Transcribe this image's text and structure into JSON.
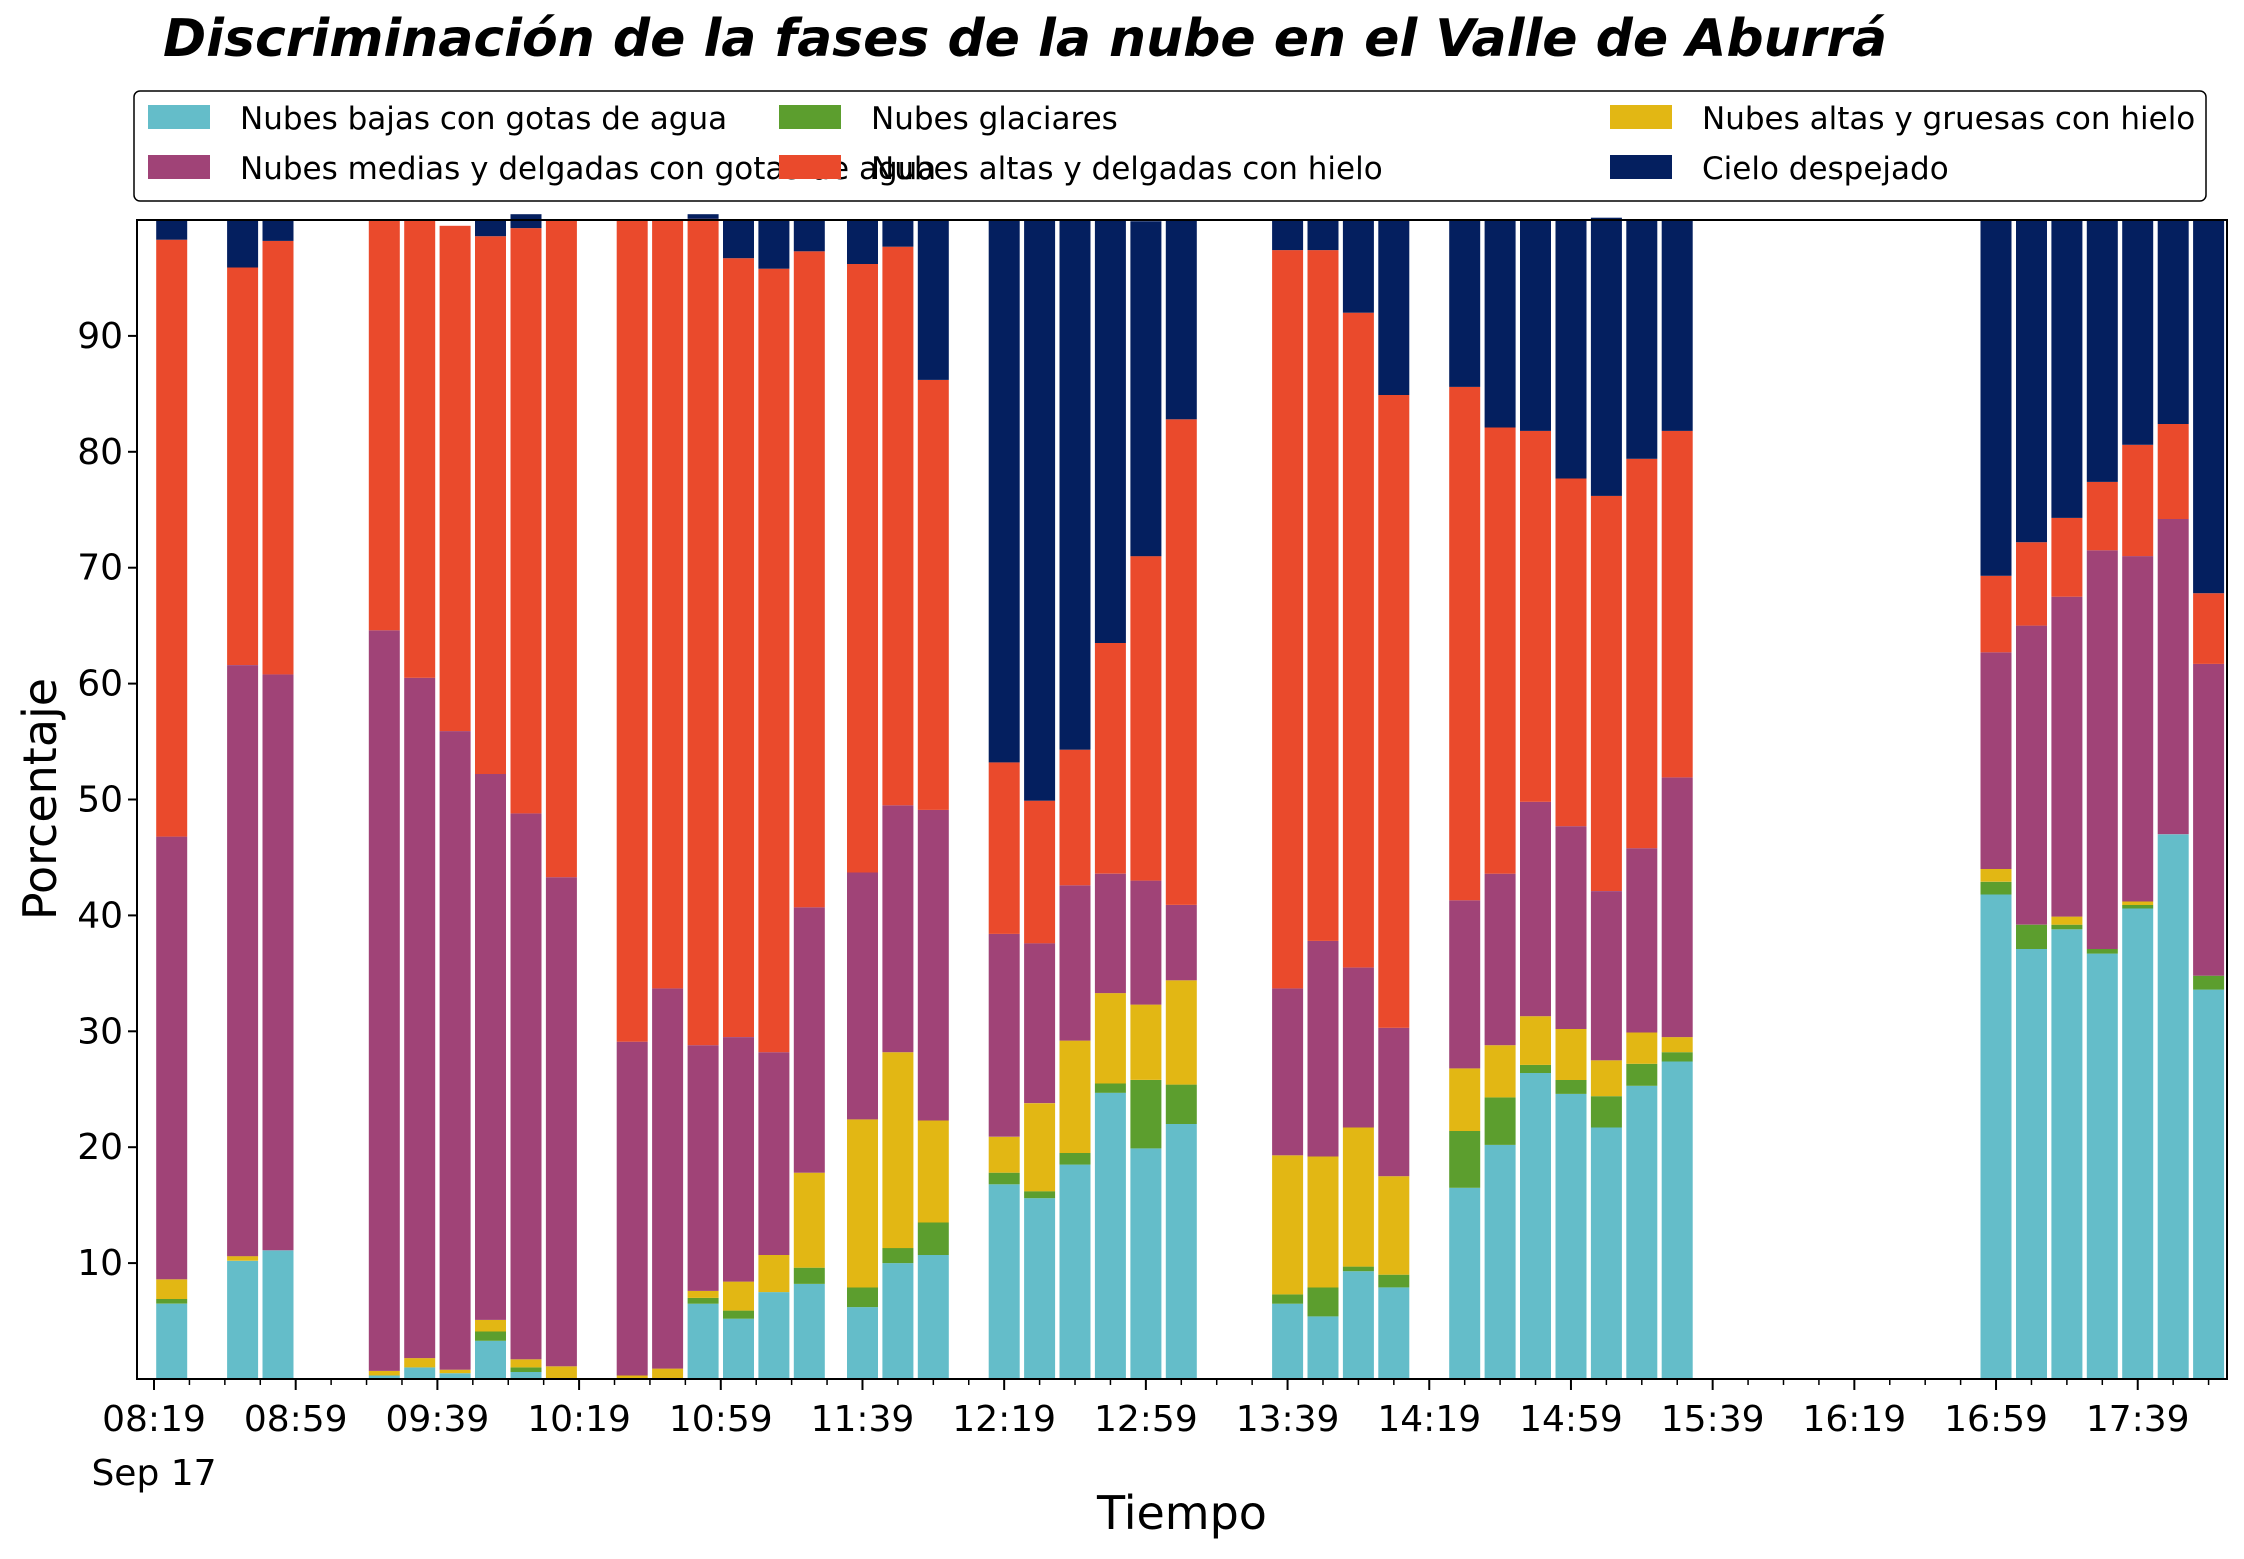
{
  "chart_data": {
    "type": "bar",
    "stacked": true,
    "title": "Discriminación de la fases de la nube en el Valle de Aburrá",
    "xlabel": "Tiempo",
    "ylabel": "Porcentaje",
    "ylim": [
      0,
      100
    ],
    "yticks": [
      10,
      20,
      30,
      40,
      50,
      60,
      70,
      80,
      90
    ],
    "xticks": [
      {
        "t": 0,
        "label": "08:19",
        "sublabel": "Sep 17"
      },
      {
        "t": 40,
        "label": "08:59"
      },
      {
        "t": 80,
        "label": "09:39"
      },
      {
        "t": 120,
        "label": "10:19"
      },
      {
        "t": 160,
        "label": "10:59"
      },
      {
        "t": 200,
        "label": "11:39"
      },
      {
        "t": 240,
        "label": "12:19"
      },
      {
        "t": 280,
        "label": "12:59"
      },
      {
        "t": 320,
        "label": "13:39"
      },
      {
        "t": 360,
        "label": "14:19"
      },
      {
        "t": 400,
        "label": "14:59"
      },
      {
        "t": 440,
        "label": "15:39"
      },
      {
        "t": 480,
        "label": "16:19"
      },
      {
        "t": 520,
        "label": "16:59"
      },
      {
        "t": 560,
        "label": "17:39"
      }
    ],
    "x_minutes_after_0819": [
      5,
      25,
      35,
      65,
      75,
      85,
      95,
      105,
      115,
      135,
      145,
      155,
      165,
      175,
      185,
      200,
      210,
      220,
      240,
      250,
      260,
      270,
      280,
      290,
      320,
      330,
      340,
      350,
      370,
      380,
      390,
      400,
      410,
      420,
      430,
      520,
      530,
      540,
      550,
      560,
      570,
      580
    ],
    "legend_position": "top",
    "series": [
      {
        "name": "Nubes bajas con gotas de agua",
        "color": "#64bdc9",
        "values": [
          6.5,
          10.2,
          11.1,
          0.3,
          1.0,
          0.5,
          3.3,
          0.6,
          0,
          0,
          0,
          6.5,
          5.2,
          7.5,
          8.2,
          6.2,
          10.0,
          10.7,
          16.8,
          15.6,
          18.5,
          24.7,
          19.9,
          22.0,
          6.5,
          5.4,
          9.3,
          7.9,
          16.5,
          20.2,
          26.4,
          24.6,
          21.7,
          25.3,
          27.4,
          41.8,
          37.1,
          38.8,
          36.7,
          40.6,
          47.0,
          33.6
        ]
      },
      {
        "name": "Nubes glaciares",
        "color": "#5c9e2e",
        "values": [
          0.4,
          0,
          0,
          0,
          0,
          0,
          0.8,
          0.4,
          0,
          0,
          0,
          0.5,
          0.7,
          0,
          1.4,
          1.7,
          1.3,
          2.8,
          1.0,
          0.6,
          1.0,
          0.8,
          5.9,
          3.4,
          0.8,
          2.5,
          0.4,
          1.1,
          4.9,
          4.1,
          0.7,
          1.2,
          2.7,
          1.9,
          0.8,
          1.1,
          2.1,
          0.4,
          0.4,
          0.3,
          0,
          1.2
        ]
      },
      {
        "name": "Nubes altas y gruesas con hielo",
        "color": "#e2b714",
        "values": [
          1.7,
          0.4,
          0,
          0.4,
          0.8,
          0.3,
          1.0,
          0.7,
          1.1,
          0.3,
          0.9,
          0.6,
          2.5,
          3.2,
          8.2,
          14.5,
          16.9,
          8.8,
          3.1,
          7.6,
          9.7,
          7.8,
          6.5,
          9.0,
          12.0,
          11.3,
          12.0,
          8.5,
          5.4,
          4.5,
          4.2,
          4.4,
          3.1,
          2.7,
          1.3,
          1.1,
          0,
          0.7,
          0,
          0.3,
          0,
          0
        ]
      },
      {
        "name": "Nubes medias y delgadas con gotas de agua",
        "color": "#a04377",
        "values": [
          38.2,
          51.0,
          49.7,
          63.9,
          58.7,
          55.1,
          47.1,
          47.1,
          42.2,
          28.8,
          32.8,
          21.2,
          21.1,
          17.5,
          22.9,
          21.3,
          21.3,
          26.8,
          17.5,
          13.8,
          13.4,
          10.3,
          10.7,
          6.5,
          14.4,
          18.6,
          13.8,
          12.8,
          14.5,
          14.8,
          18.5,
          17.5,
          14.6,
          15.9,
          22.4,
          18.7,
          25.8,
          27.6,
          34.4,
          29.8,
          27.2,
          26.9
        ]
      },
      {
        "name": "Nubes altas y delgadas con hielo",
        "color": "#ea4a2c",
        "values": [
          51.5,
          34.3,
          37.4,
          35.4,
          39.5,
          43.6,
          46.4,
          50.5,
          56.7,
          70.9,
          66.3,
          71.3,
          67.2,
          67.6,
          56.6,
          52.5,
          48.2,
          37.1,
          14.8,
          12.3,
          11.7,
          19.9,
          28.0,
          41.9,
          63.7,
          59.6,
          56.5,
          54.6,
          44.3,
          38.5,
          32.0,
          30.0,
          34.1,
          33.6,
          29.9,
          6.6,
          7.2,
          6.8,
          5.9,
          9.6,
          8.2,
          6.1
        ]
      },
      {
        "name": "Cielo despejado",
        "color": "#041f5f",
        "values": [
          1.7,
          4.1,
          1.8,
          0,
          0,
          0,
          1.4,
          1.2,
          0,
          0,
          0,
          0.4,
          3.3,
          4.2,
          2.7,
          3.8,
          2.3,
          13.8,
          46.8,
          50.1,
          45.7,
          36.5,
          28.9,
          17.2,
          2.6,
          2.6,
          8.0,
          15.1,
          14.4,
          17.9,
          18.2,
          22.3,
          24.0,
          20.6,
          18.2,
          30.7,
          27.8,
          25.7,
          22.6,
          19.4,
          17.6,
          32.2
        ]
      }
    ]
  }
}
